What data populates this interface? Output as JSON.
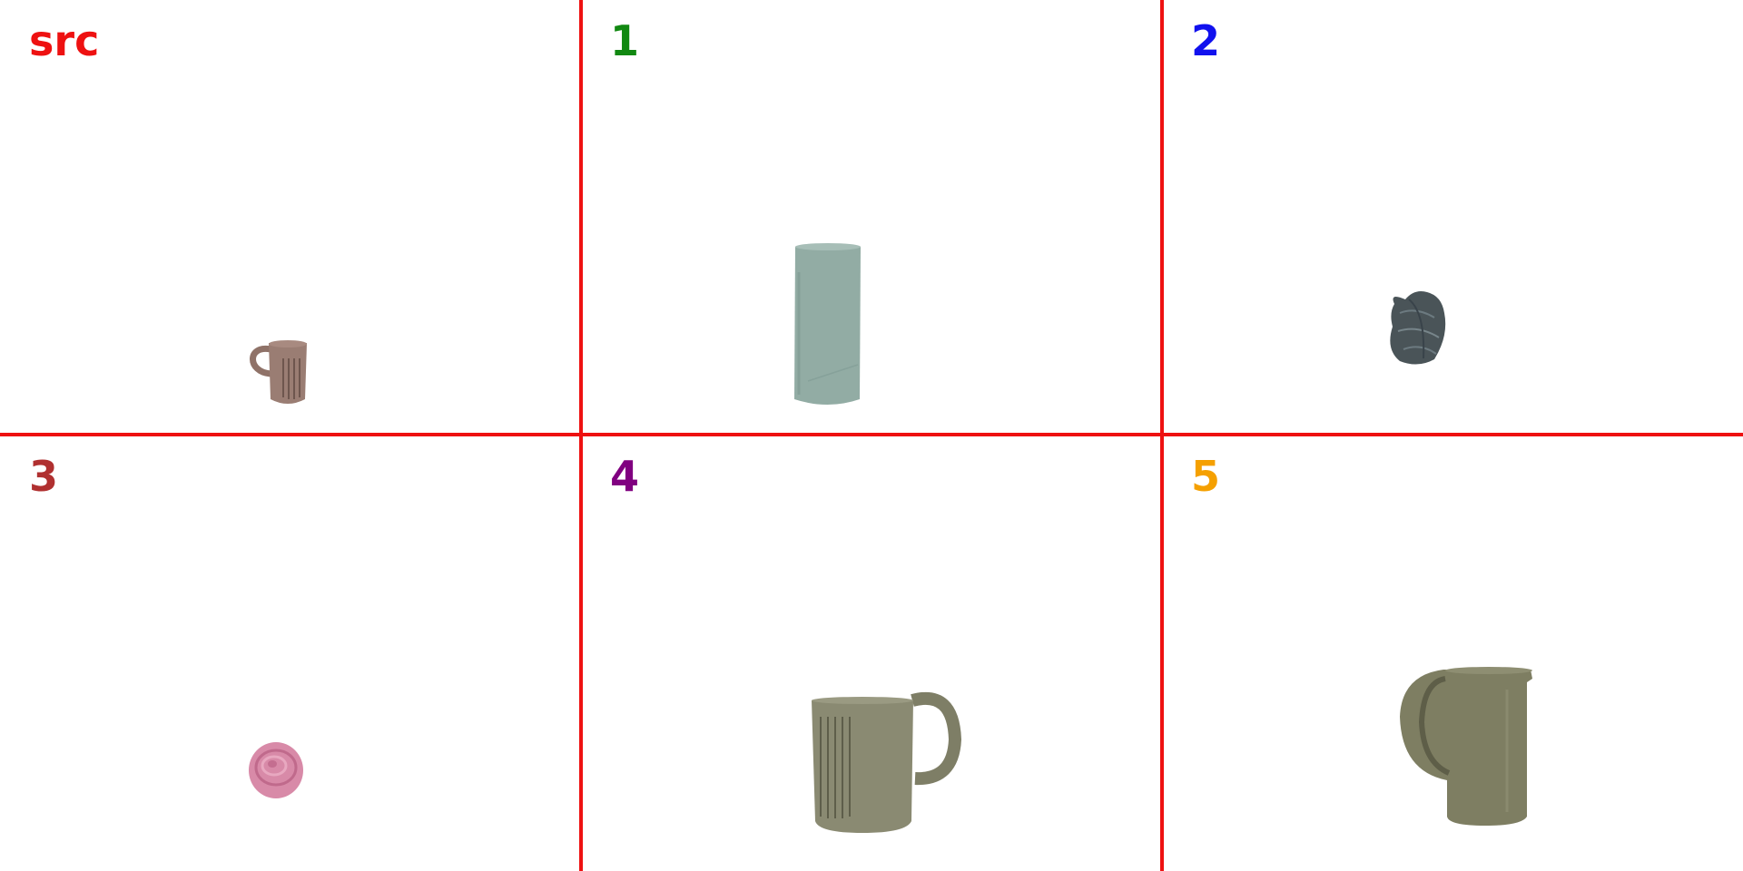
{
  "panels": [
    {
      "label": "src",
      "label_color": "#ee1111",
      "object_icon": "ribbed-mug-icon",
      "object_color": "#9a7d73"
    },
    {
      "label": "1",
      "label_color": "#118811",
      "object_icon": "paper-roll-icon",
      "object_color": "#92aca4"
    },
    {
      "label": "2",
      "label_color": "#1111ee",
      "object_icon": "steel-scrubber-icon",
      "object_color": "#4a5458"
    },
    {
      "label": "3",
      "label_color": "#b03030",
      "object_icon": "pink-sponge-ball-icon",
      "object_color": "#d88aa8"
    },
    {
      "label": "4",
      "label_color": "#800080",
      "object_icon": "ribbed-mug-icon",
      "object_color": "#8a8a72"
    },
    {
      "label": "5",
      "label_color": "#f5a000",
      "object_icon": "pitcher-mug-icon",
      "object_color": "#7e7e62"
    }
  ],
  "divider_color": "#ee1111"
}
